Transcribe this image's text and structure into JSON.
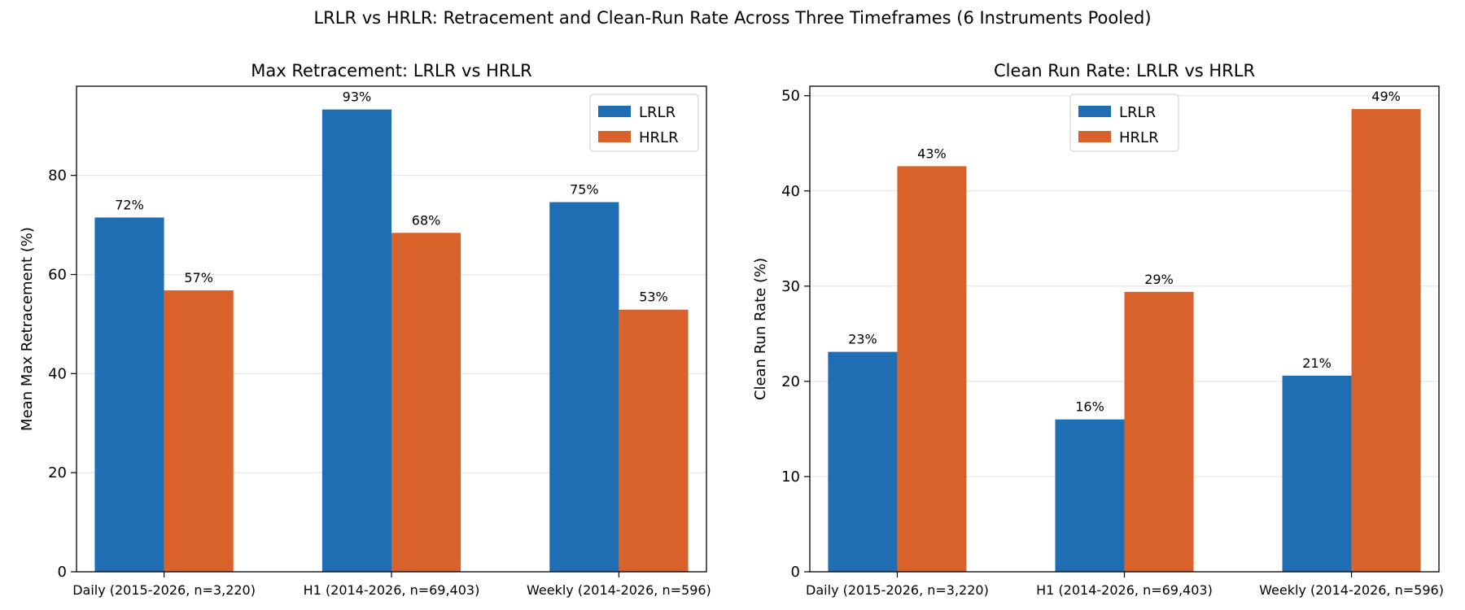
{
  "figure": {
    "title": "LRLR vs HRLR: Retracement and Clean-Run Rate Across Three Timeframes (6 Instruments Pooled)"
  },
  "colors": {
    "LRLR": "#1f6db2",
    "HRLR": "#d9622b"
  },
  "chart_data": [
    {
      "type": "bar",
      "title": "Max Retracement: LRLR vs HRLR",
      "xlabel": "",
      "ylabel": "Mean Max Retracement (%)",
      "categories": [
        "Daily (2015-2026, n=3,220)",
        "H1 (2014-2026, n=69,403)",
        "Weekly (2014-2026, n=596)"
      ],
      "series": [
        {
          "name": "LRLR",
          "values": [
            71.5,
            93.3,
            74.6
          ],
          "labels": [
            "72%",
            "93%",
            "75%"
          ]
        },
        {
          "name": "HRLR",
          "values": [
            56.8,
            68.4,
            52.9
          ],
          "labels": [
            "57%",
            "68%",
            "53%"
          ]
        }
      ],
      "ylim": [
        0,
        98
      ],
      "yticks": [
        0,
        20,
        40,
        60,
        80
      ],
      "grid": "horizontal",
      "legend_position": "top-right"
    },
    {
      "type": "bar",
      "title": "Clean Run Rate: LRLR vs HRLR",
      "xlabel": "",
      "ylabel": "Clean Run Rate (%)",
      "categories": [
        "Daily (2015-2026, n=3,220)",
        "H1 (2014-2026, n=69,403)",
        "Weekly (2014-2026, n=596)"
      ],
      "series": [
        {
          "name": "LRLR",
          "values": [
            23.1,
            16.0,
            20.6
          ],
          "labels": [
            "23%",
            "16%",
            "21%"
          ]
        },
        {
          "name": "HRLR",
          "values": [
            42.6,
            29.4,
            48.6
          ],
          "labels": [
            "43%",
            "29%",
            "49%"
          ]
        }
      ],
      "ylim": [
        0,
        51
      ],
      "yticks": [
        0,
        10,
        20,
        30,
        40,
        50
      ],
      "grid": "horizontal",
      "legend_position": "top-center"
    }
  ]
}
